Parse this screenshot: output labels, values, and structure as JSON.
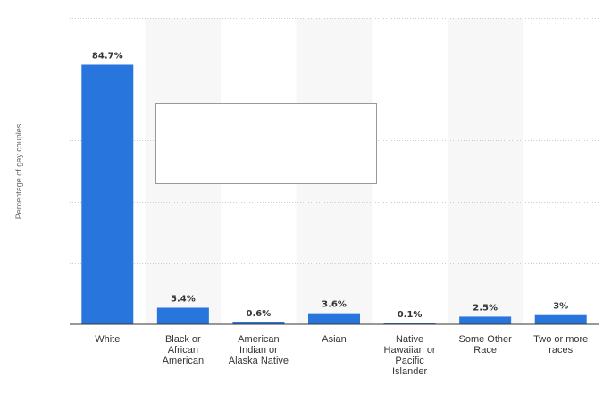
{
  "chart_data": {
    "type": "bar",
    "ylabel": "Percentage of gay couples",
    "xlabel": "",
    "categories": [
      [
        "White"
      ],
      [
        "Black or",
        "African",
        "American"
      ],
      [
        "American",
        "Indian or",
        "Alaska Native"
      ],
      [
        "Asian"
      ],
      [
        "Native",
        "Hawaiian or",
        "Pacific",
        "Islander"
      ],
      [
        "Some Other",
        "Race"
      ],
      [
        "Two or more",
        "races"
      ]
    ],
    "values": [
      84.7,
      5.4,
      0.6,
      3.6,
      0.1,
      2.5,
      3
    ],
    "value_labels": [
      "84.7%",
      "5.4%",
      "0.6%",
      "3.6%",
      "0.1%",
      "2.5%",
      "3%"
    ],
    "ylim": [
      0,
      100
    ],
    "grid": true,
    "bar_color": "#2876dd",
    "band_color": "#f7f7f7"
  }
}
